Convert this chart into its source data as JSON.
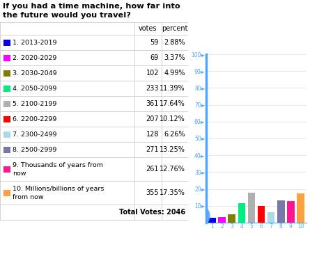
{
  "title_line1": "If you had a time machine, how far into",
  "title_line2": "the future would you travel?",
  "categories": [
    "1. 2013-2019",
    "2. 2020-2029",
    "3. 2030-2049",
    "4. 2050-2099",
    "5. 2100-2199",
    "6. 2200-2299",
    "7. 2300-2499",
    "8. 2500-2999",
    "9. Thousands of years from\nnow",
    "10. Millions/billions of years\nfrom now"
  ],
  "votes": [
    59,
    69,
    102,
    233,
    361,
    207,
    128,
    271,
    261,
    355
  ],
  "percents": [
    2.88,
    3.37,
    4.99,
    11.39,
    17.64,
    10.12,
    6.26,
    13.25,
    12.76,
    17.35
  ],
  "percent_strs": [
    "2.88%",
    "3.37%",
    "4.99%",
    "11.39%",
    "17.64%",
    "10.12%",
    "6.26%",
    "13.25%",
    "12.76%",
    "17.35%"
  ],
  "bar_colors": [
    "#0000ee",
    "#ff00ff",
    "#808000",
    "#00ee80",
    "#b0b0b0",
    "#ff0000",
    "#add8e6",
    "#7878a8",
    "#ff1493",
    "#ffa040"
  ],
  "total_votes": 2046,
  "yticks": [
    10,
    20,
    30,
    40,
    50,
    60,
    70,
    80,
    90,
    100
  ],
  "bg_color": "#ffffff",
  "table_line_color": "#cccccc",
  "title_color": "#000000",
  "axis_color": "#4da6ff",
  "chart_bg": "#ffffff"
}
